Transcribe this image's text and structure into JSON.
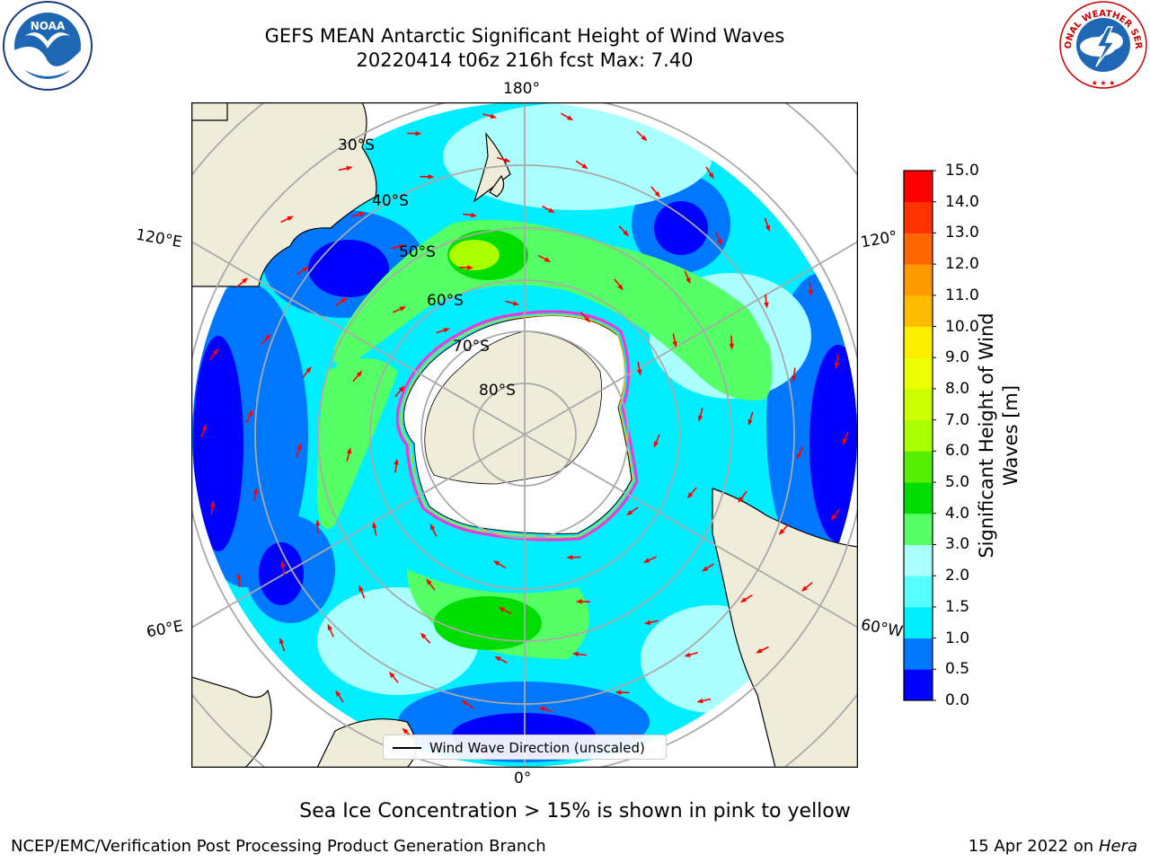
{
  "title": {
    "line1": "GEFS MEAN Antarctic Significant Height of Wind Waves",
    "line2": "20220414 t06z 216h fcst   Max: 7.40"
  },
  "logos": {
    "noaa": "NOAA",
    "nws": "NATIONAL WEATHER SERVICE"
  },
  "map": {
    "projection": "south-polar-stereographic",
    "longitude_labels": {
      "top": "180°",
      "bottom": "0°",
      "left_upper": "120°E",
      "left_lower": "60°E",
      "right_upper": "120°",
      "right_lower": "60°W"
    },
    "latitude_labels": [
      "30°S",
      "40°S",
      "50°S",
      "60°S",
      "70°S",
      "80°S"
    ],
    "land_color": "#efedda",
    "ice_edge_colors": [
      "#ff33cc",
      "#ffcc00"
    ]
  },
  "legend": {
    "label": "Wind Wave Direction (unscaled)",
    "arrow_color": "#ff0000"
  },
  "colorbar": {
    "label_line1": "Significant Height of Wind",
    "label_line2": "Waves [m]",
    "ticks": [
      "15.0",
      "14.0",
      "13.0",
      "12.0",
      "11.0",
      "10.0",
      "9.0",
      "8.0",
      "7.0",
      "6.0",
      "5.0",
      "4.0",
      "3.0",
      "2.0",
      "1.5",
      "1.0",
      "0.5",
      "0.0"
    ],
    "colors": [
      "#0000ff",
      "#0077ff",
      "#00eeff",
      "#55ffff",
      "#aaffff",
      "#55ff66",
      "#00dd00",
      "#55ee00",
      "#aaff00",
      "#ccff00",
      "#eeff00",
      "#ffee00",
      "#ffbb00",
      "#ff9900",
      "#ff6600",
      "#ff3300",
      "#ff0000"
    ]
  },
  "footnote": "Sea Ice Concentration > 15% is shown in pink to yellow",
  "footer": {
    "left": "NCEP/EMC/Verification Post Processing Product Generation Branch",
    "right_prefix": "15 Apr 2022 on ",
    "right_host": "Hera"
  }
}
